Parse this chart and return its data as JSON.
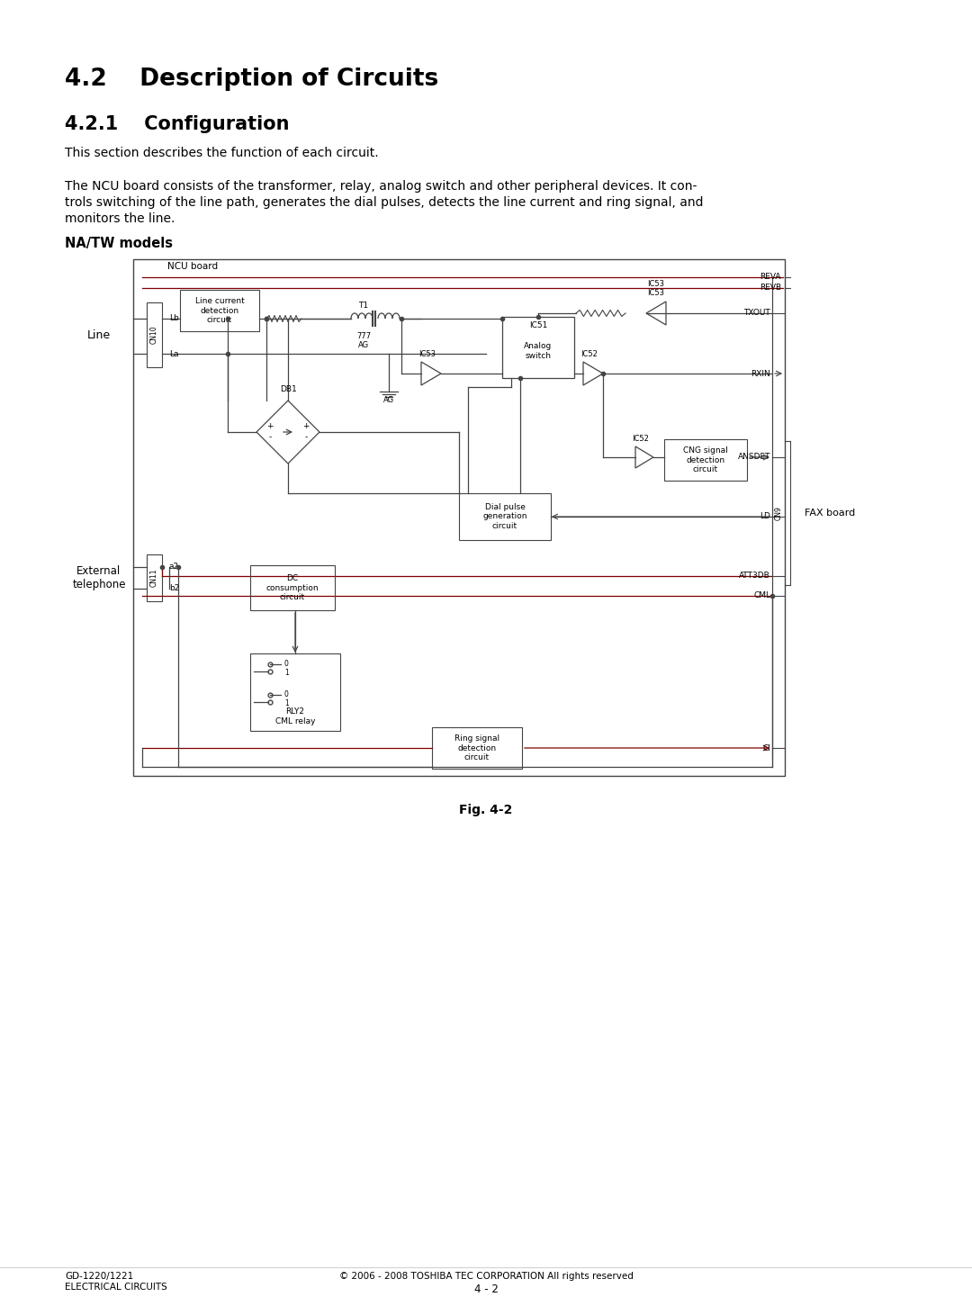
{
  "page_title": "4.2    Description of Circuits",
  "section_title": "4.2.1    Configuration",
  "para1": "This section describes the function of each circuit.",
  "para2a": "The NCU board consists of the transformer, relay, analog switch and other peripheral devices. It con-",
  "para2b": "trols switching of the line path, generates the dial pulses, detects the line current and ring signal, and",
  "para2c": "monitors the line.",
  "subsection": "NA/TW models",
  "fig_caption": "Fig. 4-2",
  "footer_left1": "GD-1220/1221",
  "footer_left2": "ELECTRICAL CIRCUITS",
  "footer_center": "© 2006 - 2008 TOSHIBA TEC CORPORATION All rights reserved",
  "footer_page": "4 - 2",
  "bg_color": "#ffffff",
  "text_color": "#000000",
  "dark_gray": "#444444",
  "red_color": "#800000"
}
